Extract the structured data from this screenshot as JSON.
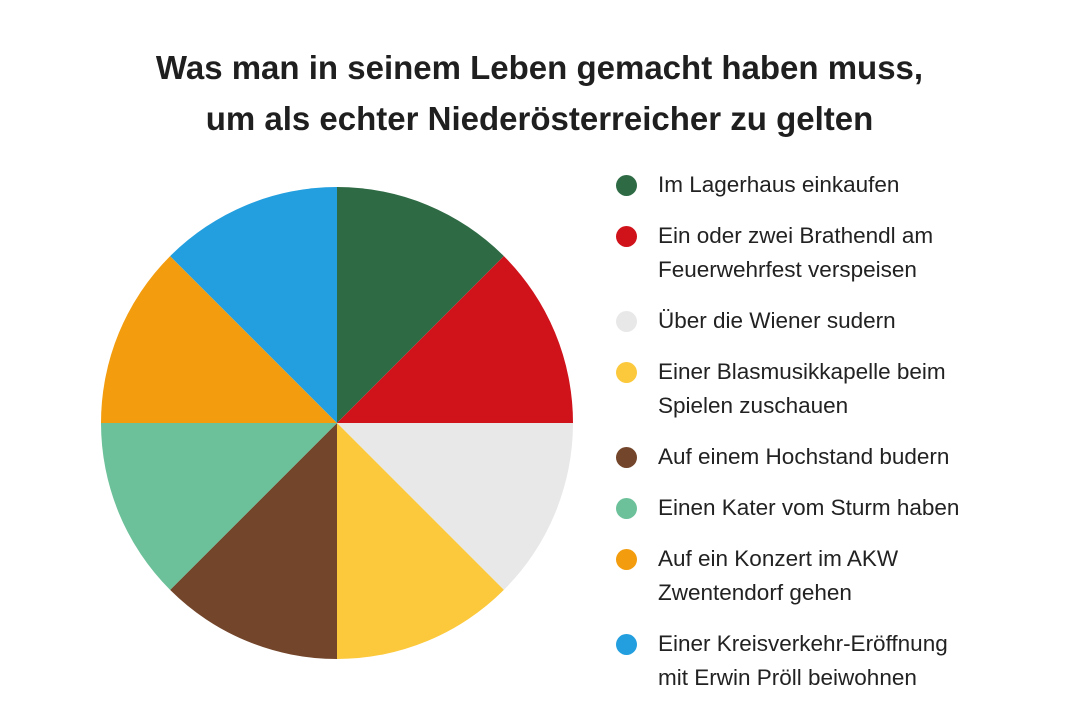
{
  "chart_data": {
    "type": "pie",
    "title": "Was man in seinem Leben gemacht haben muss,\num als echter Niederösterreicher zu gelten",
    "title_lines": [
      "Was man in seinem Leben gemacht haben muss,",
      "um als echter Niederösterreicher zu gelten"
    ],
    "legend_position": "right",
    "start": "top, clockwise",
    "slices": [
      {
        "label": "Im Lagerhaus einkaufen",
        "value": 12.5,
        "color": "#2e6b45"
      },
      {
        "label": "Ein oder zwei Brathendl am\nFeuerwehrfest verspeisen",
        "value": 12.5,
        "color": "#d0121b"
      },
      {
        "label": "Über die Wiener sudern",
        "value": 12.5,
        "color": "#e8e8e8"
      },
      {
        "label": "Einer Blasmusikkapelle beim\nSpielen zuschauen",
        "value": 12.5,
        "color": "#fcc93c"
      },
      {
        "label": "Auf einem Hochstand budern",
        "value": 12.5,
        "color": "#73452a"
      },
      {
        "label": "Einen Kater vom Sturm haben",
        "value": 12.5,
        "color": "#6cc19a"
      },
      {
        "label": "Auf ein Konzert im AKW\nZwentendorf gehen",
        "value": 12.5,
        "color": "#f29c0e"
      },
      {
        "label": "Einer Kreisverkehr-Eröffnung\nmit Erwin Pröll beiwohnen",
        "value": 12.5,
        "color": "#239fdf"
      }
    ]
  }
}
